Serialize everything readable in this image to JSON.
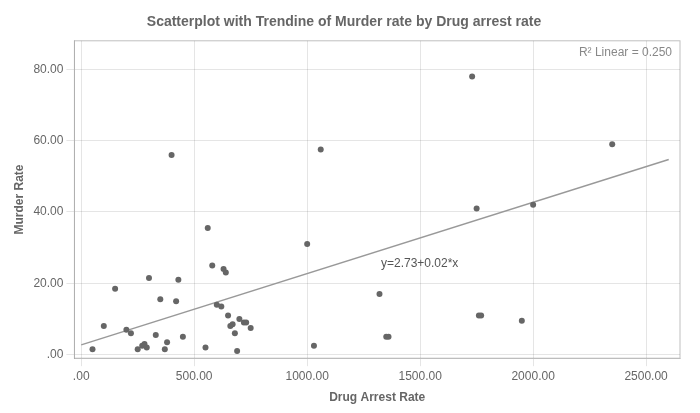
{
  "chart_data": {
    "type": "scatter",
    "title": "Scatterplot with Trendine of Murder rate by Drug arrest rate",
    "xlabel": "Drug Arrest Rate",
    "ylabel": "Murder Rate",
    "annotations": [
      "y=2.73+0.02*x",
      "R² Linear = 0.250"
    ],
    "series": [
      {
        "type": "scatter",
        "color": "#666666",
        "x": [
          50,
          100,
          150,
          200,
          220,
          250,
          270,
          280,
          290,
          300,
          330,
          350,
          370,
          380,
          400,
          420,
          430,
          450,
          550,
          560,
          580,
          600,
          620,
          630,
          640,
          650,
          660,
          670,
          680,
          690,
          700,
          720,
          730,
          750,
          1000,
          1030,
          1060,
          1320,
          1350,
          1360,
          1730,
          1750,
          1760,
          1770,
          2000,
          1950,
          2350
        ],
        "values": [
          1.5,
          8,
          18.5,
          7,
          6,
          1.5,
          2.5,
          3,
          2,
          21.5,
          5.5,
          15.5,
          1.5,
          3.5,
          56,
          15,
          21,
          5,
          2,
          35.5,
          25,
          14,
          13.5,
          24,
          23,
          11,
          8,
          8.5,
          6,
          1,
          10,
          9,
          9,
          7.5,
          31,
          2.5,
          57.5,
          17,
          5,
          5,
          78,
          41,
          11,
          11,
          42,
          9.5,
          59
        ]
      },
      {
        "type": "line",
        "color": "#999999",
        "x": [
          0,
          2600
        ],
        "values": [
          2.73,
          54.73
        ]
      }
    ],
    "xlim": [
      -30,
      2650
    ],
    "ylim": [
      -1,
      88
    ],
    "xticks": [
      {
        "value": 0,
        "label": ".00"
      },
      {
        "value": 500,
        "label": "500.00"
      },
      {
        "value": 1000,
        "label": "1000.00"
      },
      {
        "value": 1500,
        "label": "1500.00"
      },
      {
        "value": 2000,
        "label": "2000.00"
      },
      {
        "value": 2500,
        "label": "2500.00"
      }
    ],
    "yticks": [
      {
        "value": 0,
        "label": ".00"
      },
      {
        "value": 20,
        "label": "20.00"
      },
      {
        "value": 40,
        "label": "40.00"
      },
      {
        "value": 60,
        "label": "60.00"
      },
      {
        "value": 80,
        "label": "80.00"
      }
    ],
    "grid": true
  }
}
